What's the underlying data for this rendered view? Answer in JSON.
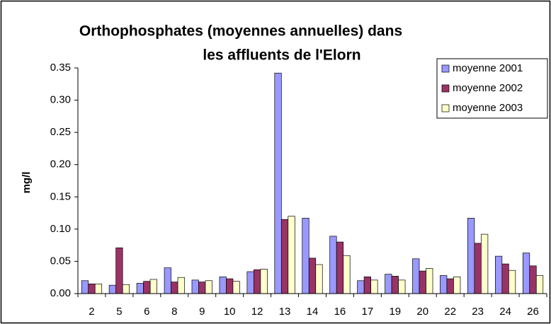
{
  "chart_data": {
    "type": "bar",
    "title": [
      "Orthophosphates (moyennes annuelles) dans",
      "les affluents de l'Elorn"
    ],
    "y_label": "mg/l",
    "categories": [
      "2",
      "5",
      "6",
      "8",
      "9",
      "10",
      "12",
      "13",
      "14",
      "16",
      "17",
      "19",
      "20",
      "22",
      "23",
      "24",
      "26"
    ],
    "series": [
      {
        "name": "moyenne 2001",
        "color": "#9999ff",
        "values": [
          0.02,
          0.013,
          0.016,
          0.04,
          0.021,
          0.026,
          0.034,
          0.342,
          0.117,
          0.089,
          0.02,
          0.03,
          0.054,
          0.028,
          0.117,
          0.058,
          0.063
        ]
      },
      {
        "name": "moyenne 2002",
        "color": "#993366",
        "values": [
          0.015,
          0.071,
          0.019,
          0.018,
          0.018,
          0.023,
          0.037,
          0.115,
          0.055,
          0.08,
          0.026,
          0.027,
          0.035,
          0.023,
          0.078,
          0.046,
          0.043
        ]
      },
      {
        "name": "moyenne 2003",
        "color": "#ffffcc",
        "values": [
          0.015,
          0.014,
          0.022,
          0.025,
          0.02,
          0.019,
          0.038,
          0.12,
          0.045,
          0.059,
          0.021,
          0.021,
          0.039,
          0.026,
          0.092,
          0.036,
          0.028
        ]
      }
    ],
    "ylim": [
      0,
      0.35
    ],
    "yticks": [
      {
        "value": 0,
        "label": "0.00"
      },
      0.05,
      {
        "value": 0.1,
        "label": "0.10"
      },
      0.15,
      {
        "value": 0.2,
        "label": "0.20"
      },
      0.25,
      {
        "value": 0.3,
        "label": "0.30"
      },
      0.35
    ],
    "grid": false,
    "legend": "top-right"
  }
}
